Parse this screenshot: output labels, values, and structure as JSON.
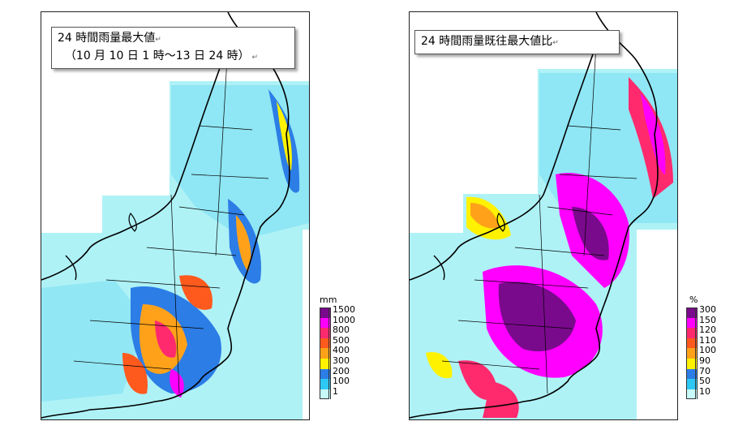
{
  "left_map": {
    "title_line1": "24 時間雨量最大値",
    "title_line2": "（10 月 10 日 1 時～13 日 24 時）",
    "legend_unit": "mm",
    "legend_labels": [
      "1500",
      "1000",
      "800",
      "500",
      "400",
      "300",
      "200",
      "100",
      "1"
    ],
    "legend_colors": [
      "#7a0a8c",
      "#ff00ff",
      "#ff2a6e",
      "#ff5a1e",
      "#ffa21a",
      "#fff200",
      "#2c7de6",
      "#2ec8f5",
      "#c8fafa"
    ]
  },
  "right_map": {
    "title_line1": "24 時間雨量既往最大値比",
    "legend_unit": "%",
    "legend_labels": [
      "300",
      "150",
      "120",
      "110",
      "100",
      "90",
      "70",
      "50",
      "10"
    ],
    "legend_colors": [
      "#7a0a8c",
      "#ff00ff",
      "#ff2a6e",
      "#ff5a1e",
      "#ffa21a",
      "#fff200",
      "#2c7de6",
      "#2ec8f5",
      "#c8fafa"
    ]
  },
  "colors": {
    "land_base": "#aef2f6",
    "sea_data": "#aef2f6",
    "coast": "#000000"
  }
}
